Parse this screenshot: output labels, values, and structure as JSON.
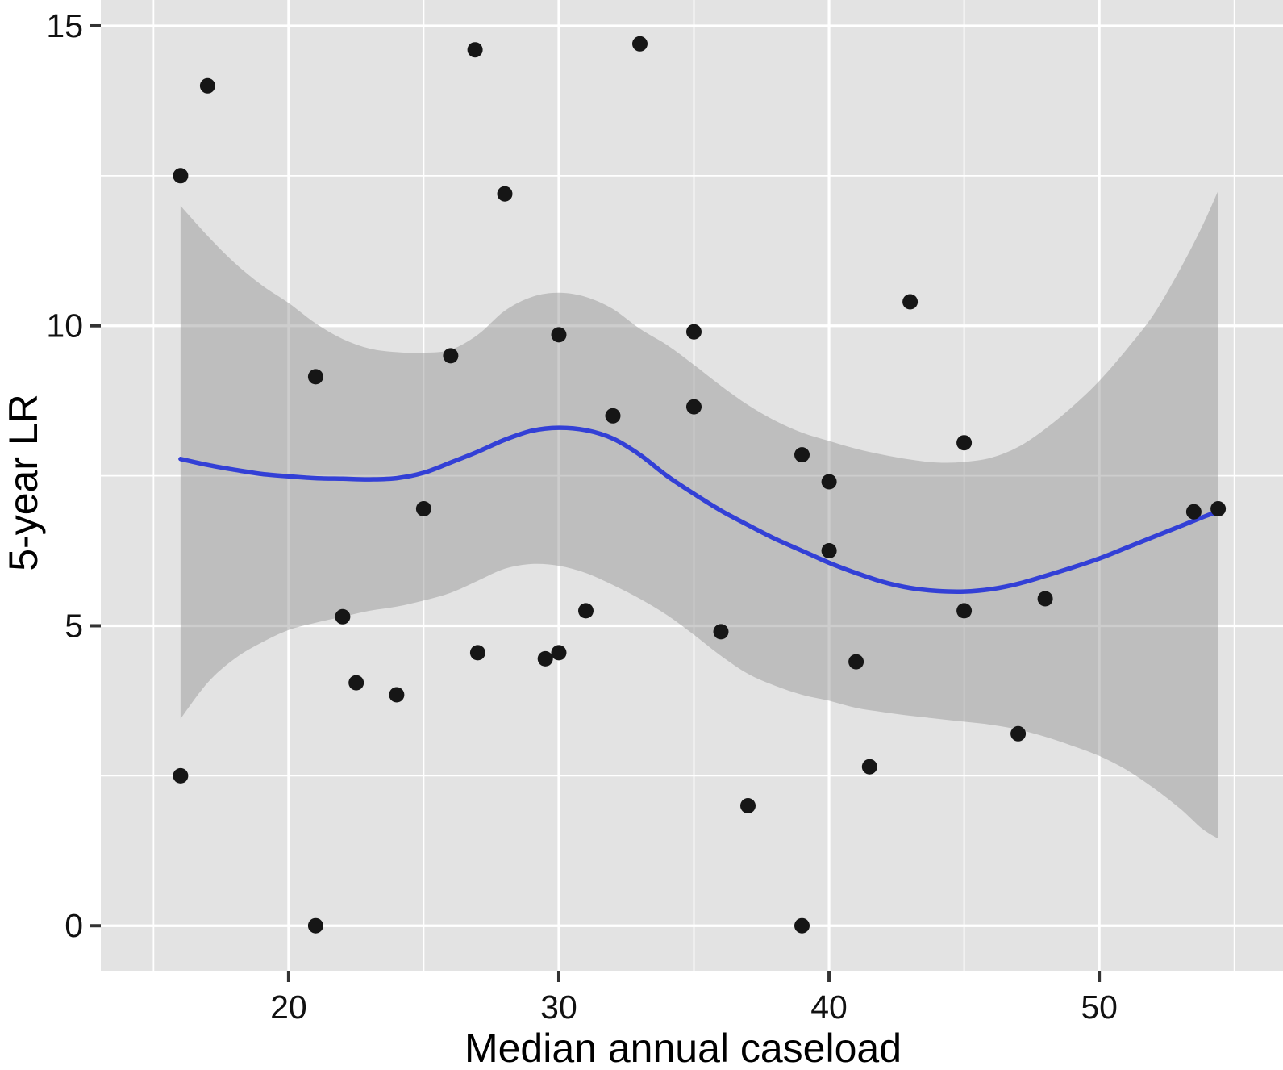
{
  "chart_data": {
    "type": "scatter",
    "title": "",
    "xlabel": "Median annual caseload",
    "ylabel": "5-year LR",
    "xlim": [
      13.05,
      56.8
    ],
    "ylim": [
      -0.75,
      15.43
    ],
    "grid": "on",
    "legend": "none",
    "x_ticks": [
      20,
      30,
      40,
      50
    ],
    "x_tick_labels": [
      "20",
      "30",
      "40",
      "50"
    ],
    "x_minor_ticks": [
      15,
      25,
      35,
      45,
      55
    ],
    "y_ticks": [
      0,
      5,
      10,
      15
    ],
    "y_tick_labels": [
      "0",
      "5",
      "10",
      "15"
    ],
    "y_minor_ticks": [
      2.5,
      7.5,
      12.5
    ],
    "points": [
      [
        16,
        12.5
      ],
      [
        17,
        14.0
      ],
      [
        16,
        2.5
      ],
      [
        21,
        9.15
      ],
      [
        21,
        0
      ],
      [
        22,
        5.15
      ],
      [
        22.5,
        4.05
      ],
      [
        24,
        3.85
      ],
      [
        25,
        6.95
      ],
      [
        26,
        9.5
      ],
      [
        26.9,
        14.6
      ],
      [
        27,
        4.55
      ],
      [
        28,
        12.2
      ],
      [
        29.5,
        4.45
      ],
      [
        30,
        4.55
      ],
      [
        30,
        9.85
      ],
      [
        31,
        5.25
      ],
      [
        32,
        8.5
      ],
      [
        33,
        14.7
      ],
      [
        35,
        9.9
      ],
      [
        35,
        8.65
      ],
      [
        36,
        4.9
      ],
      [
        37,
        2.0
      ],
      [
        39,
        7.85
      ],
      [
        39,
        0
      ],
      [
        40,
        7.4
      ],
      [
        40,
        6.25
      ],
      [
        41,
        4.4
      ],
      [
        41.5,
        2.65
      ],
      [
        43,
        10.4
      ],
      [
        45,
        8.05
      ],
      [
        45,
        5.25
      ],
      [
        47,
        3.2
      ],
      [
        48,
        5.45
      ],
      [
        53.5,
        6.9
      ],
      [
        54.4,
        6.95
      ]
    ],
    "smooth_line": [
      [
        16,
        7.78
      ],
      [
        17,
        7.68
      ],
      [
        18,
        7.6
      ],
      [
        19,
        7.53
      ],
      [
        20,
        7.49
      ],
      [
        21,
        7.46
      ],
      [
        22,
        7.45
      ],
      [
        23,
        7.44
      ],
      [
        24,
        7.46
      ],
      [
        25,
        7.55
      ],
      [
        26,
        7.72
      ],
      [
        27,
        7.9
      ],
      [
        28,
        8.1
      ],
      [
        29,
        8.25
      ],
      [
        30,
        8.3
      ],
      [
        31,
        8.26
      ],
      [
        32,
        8.12
      ],
      [
        33,
        7.85
      ],
      [
        34,
        7.5
      ],
      [
        35,
        7.2
      ],
      [
        36,
        6.92
      ],
      [
        37,
        6.68
      ],
      [
        38,
        6.45
      ],
      [
        39,
        6.25
      ],
      [
        40,
        6.05
      ],
      [
        41,
        5.88
      ],
      [
        42,
        5.73
      ],
      [
        43,
        5.63
      ],
      [
        44,
        5.58
      ],
      [
        45,
        5.57
      ],
      [
        46,
        5.61
      ],
      [
        47,
        5.7
      ],
      [
        48,
        5.83
      ],
      [
        49,
        5.97
      ],
      [
        50,
        6.12
      ],
      [
        51,
        6.3
      ],
      [
        52,
        6.48
      ],
      [
        53,
        6.66
      ],
      [
        54,
        6.84
      ],
      [
        54.4,
        6.9
      ]
    ],
    "band_upper": [
      [
        16,
        12.0
      ],
      [
        17,
        11.5
      ],
      [
        18,
        11.05
      ],
      [
        19,
        10.68
      ],
      [
        20,
        10.38
      ],
      [
        21,
        10.04
      ],
      [
        22,
        9.78
      ],
      [
        23,
        9.62
      ],
      [
        24,
        9.56
      ],
      [
        25,
        9.55
      ],
      [
        26,
        9.6
      ],
      [
        27,
        9.85
      ],
      [
        28,
        10.25
      ],
      [
        29,
        10.48
      ],
      [
        30,
        10.55
      ],
      [
        31,
        10.48
      ],
      [
        32,
        10.28
      ],
      [
        33,
        9.95
      ],
      [
        34,
        9.68
      ],
      [
        35,
        9.35
      ],
      [
        36,
        9.0
      ],
      [
        37,
        8.68
      ],
      [
        38,
        8.42
      ],
      [
        39,
        8.22
      ],
      [
        40,
        8.08
      ],
      [
        41,
        7.95
      ],
      [
        42,
        7.85
      ],
      [
        43,
        7.77
      ],
      [
        44,
        7.72
      ],
      [
        45,
        7.73
      ],
      [
        46,
        7.8
      ],
      [
        47,
        7.98
      ],
      [
        48,
        8.28
      ],
      [
        49,
        8.65
      ],
      [
        50,
        9.08
      ],
      [
        51,
        9.6
      ],
      [
        52,
        10.18
      ],
      [
        53,
        10.95
      ],
      [
        53.8,
        11.65
      ],
      [
        54.4,
        12.25
      ]
    ],
    "band_lower": [
      [
        16,
        3.45
      ],
      [
        17,
        4.05
      ],
      [
        18,
        4.45
      ],
      [
        19,
        4.72
      ],
      [
        20,
        4.93
      ],
      [
        21,
        5.05
      ],
      [
        22,
        5.15
      ],
      [
        23,
        5.25
      ],
      [
        24,
        5.32
      ],
      [
        25,
        5.42
      ],
      [
        26,
        5.55
      ],
      [
        27,
        5.75
      ],
      [
        28,
        5.95
      ],
      [
        29,
        6.03
      ],
      [
        30,
        6.0
      ],
      [
        31,
        5.88
      ],
      [
        32,
        5.68
      ],
      [
        33,
        5.45
      ],
      [
        34,
        5.18
      ],
      [
        35,
        4.85
      ],
      [
        36,
        4.5
      ],
      [
        37,
        4.2
      ],
      [
        38,
        4.0
      ],
      [
        39,
        3.85
      ],
      [
        40,
        3.75
      ],
      [
        41,
        3.63
      ],
      [
        42,
        3.56
      ],
      [
        43,
        3.5
      ],
      [
        44,
        3.45
      ],
      [
        45,
        3.4
      ],
      [
        46,
        3.35
      ],
      [
        47,
        3.27
      ],
      [
        48,
        3.15
      ],
      [
        49,
        3.0
      ],
      [
        50,
        2.83
      ],
      [
        51,
        2.6
      ],
      [
        52,
        2.3
      ],
      [
        53,
        1.95
      ],
      [
        53.8,
        1.62
      ],
      [
        54.4,
        1.45
      ]
    ],
    "colors": {
      "panel_bg": "#E3E3E3",
      "grid": "#FFFFFF",
      "band_fill": "rgba(150,150,150,0.48)",
      "smooth_line": "#3340D6",
      "point": "#161616",
      "tick_mark": "#333333",
      "text": "#000000"
    }
  }
}
